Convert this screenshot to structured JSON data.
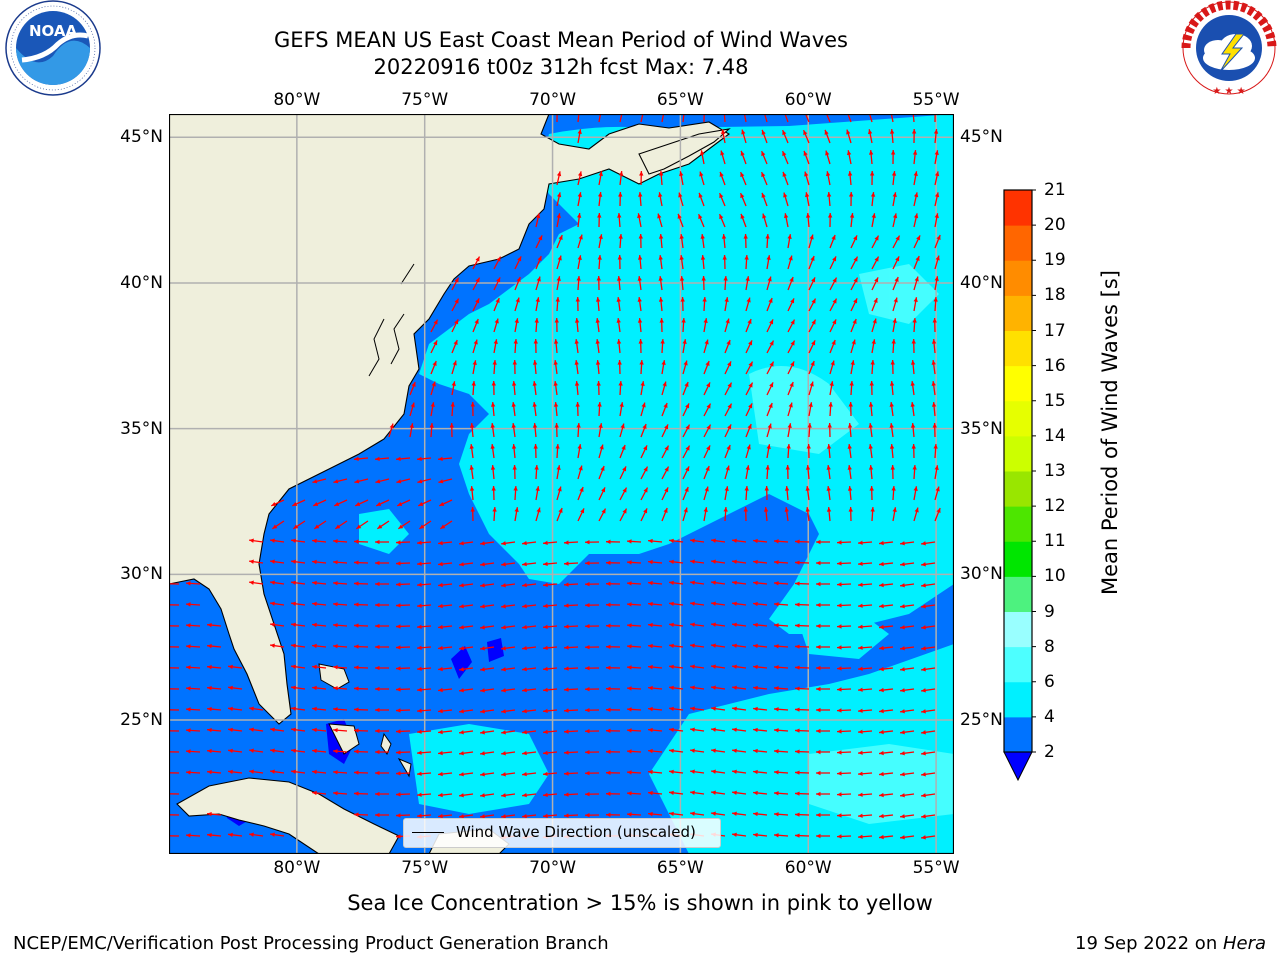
{
  "header": {
    "title": "GEFS MEAN US East Coast Mean Period of Wind Waves",
    "subtitle": "20220916 t00z 312h fcst   Max: 7.48"
  },
  "logos": {
    "left": {
      "name": "noaa-logo",
      "text": "NOAA",
      "ring_text": "NATIONAL OCEANIC AND ATMOSPHERIC ADMINISTRATION · U.S. DEPARTMENT OF COMMERCE"
    },
    "right": {
      "name": "nws-logo",
      "ring_text": "NATIONAL WEATHER SERVICE"
    }
  },
  "map": {
    "lon_ticks": [
      "80°W",
      "75°W",
      "70°W",
      "65°W",
      "60°W",
      "55°W"
    ],
    "lat_ticks": [
      "45°N",
      "40°N",
      "35°N",
      "30°N",
      "25°N"
    ],
    "lon_range": [
      -85,
      -54.3
    ],
    "lat_range": [
      20.4,
      45.8
    ],
    "legend_label": "Wind Wave Direction (unscaled)",
    "colors": {
      "land": "#efefdc",
      "arrow": "#ff0000",
      "grid": "#b0b0b0"
    }
  },
  "colorbar": {
    "label": "Mean Period of Wind Waves [s]",
    "ticks": [
      "2",
      "4",
      "6",
      "8",
      "9",
      "10",
      "11",
      "12",
      "13",
      "14",
      "15",
      "16",
      "17",
      "18",
      "19",
      "20",
      "21"
    ],
    "under_color": "#0000ff",
    "colors": [
      "#0073ff",
      "#00f0ff",
      "#4dffff",
      "#99ffff",
      "#4df27f",
      "#00e600",
      "#4de600",
      "#99e600",
      "#ccff00",
      "#e6ff00",
      "#ffff00",
      "#ffe000",
      "#ffb300",
      "#ff8c00",
      "#ff6600",
      "#ff3300",
      "#ff0000"
    ]
  },
  "footer": {
    "ice_note": "Sea Ice Concentration > 15% is shown in pink to yellow",
    "branch": "NCEP/EMC/Verification Post Processing Product Generation Branch",
    "date": "19 Sep 2022 on ",
    "machine": "Hera"
  }
}
